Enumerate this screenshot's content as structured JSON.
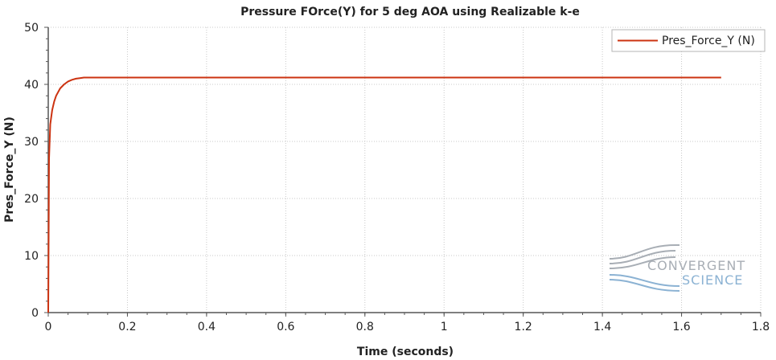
{
  "colors": {
    "series": "#cc3311",
    "grid": "#c8c8c8",
    "axis": "#555555",
    "watermark_gray": "#a8aeb5",
    "watermark_blue": "#8bb2d3"
  },
  "watermark": {
    "line1": "CONVERGENT",
    "line2": "SCIENCE"
  },
  "chart_data": {
    "type": "line",
    "title": "Pressure FOrce(Y) for 5 deg AOA using Realizable k-e",
    "xlabel": "Time (seconds)",
    "ylabel": "Pres_Force_Y (N)",
    "xlim": [
      0,
      1.8
    ],
    "ylim": [
      0,
      50
    ],
    "xticks": [
      "0",
      "0.2",
      "0.4",
      "0.6",
      "0.8",
      "1",
      "1.2",
      "1.4",
      "1.6",
      "1.8"
    ],
    "yticks": [
      "0",
      "10",
      "20",
      "30",
      "40",
      "50"
    ],
    "grid": true,
    "legend_position": "top-right",
    "series": [
      {
        "name": "Pres_Force_Y (N)",
        "x": [
          0,
          0.002,
          0.005,
          0.01,
          0.015,
          0.02,
          0.03,
          0.04,
          0.05,
          0.06,
          0.07,
          0.08,
          0.09,
          0.1,
          0.15,
          0.2,
          0.3,
          0.4,
          0.5,
          0.6,
          0.7,
          0.8,
          0.9,
          1.0,
          1.1,
          1.2,
          1.3,
          1.4,
          1.5,
          1.6,
          1.7
        ],
        "y": [
          0,
          27,
          33,
          35.5,
          37,
          38,
          39.3,
          40.0,
          40.5,
          40.8,
          41.0,
          41.1,
          41.2,
          41.2,
          41.2,
          41.2,
          41.2,
          41.2,
          41.2,
          41.2,
          41.2,
          41.2,
          41.2,
          41.2,
          41.2,
          41.2,
          41.2,
          41.2,
          41.2,
          41.2,
          41.2
        ]
      }
    ]
  }
}
